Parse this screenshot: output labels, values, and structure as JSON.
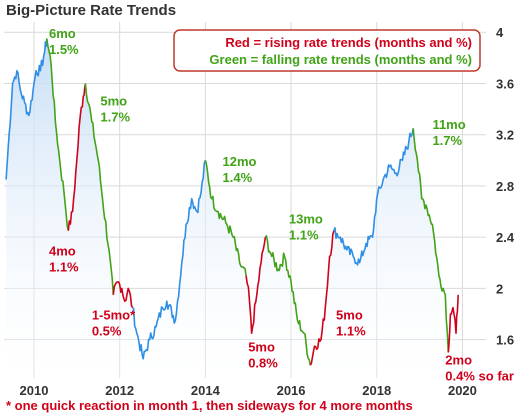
{
  "chart_data": {
    "type": "line",
    "title": "Big-Picture Rate Trends",
    "xlabel": "",
    "ylabel": "",
    "xlim": [
      2009.3,
      2020.55
    ],
    "ylim": [
      1.3,
      4.08
    ],
    "y_ticks": [
      1.6,
      2.0,
      2.4,
      2.8,
      3.2,
      3.6,
      4.0
    ],
    "y_tick_labels": [
      "1.6",
      "2",
      "2.4",
      "2.8",
      "3.2",
      "3.6",
      "4"
    ],
    "x_ticks": [
      2010,
      2012,
      2014,
      2016,
      2018,
      2020
    ],
    "x_tick_labels": [
      "2010",
      "2012",
      "2014",
      "2016",
      "2018",
      "2020"
    ],
    "grid": true,
    "legend_position": "top-right",
    "colors": {
      "neutral": "#2f8fe6",
      "rising": "#d0021b",
      "falling": "#41a317",
      "fill": "#cfe3f7",
      "grid": "#d9d9d9"
    },
    "legend": [
      {
        "text": "Red = rising rate trends (months and %)",
        "color": "#d0021b"
      },
      {
        "text": "Green = falling rate trends (months and %)",
        "color": "#41a317"
      }
    ],
    "series": [
      {
        "trend": "neutral",
        "points": [
          [
            2009.35,
            2.85
          ],
          [
            2009.42,
            3.2
          ],
          [
            2009.5,
            3.6
          ],
          [
            2009.6,
            3.7
          ],
          [
            2009.68,
            3.55
          ],
          [
            2009.78,
            3.45
          ],
          [
            2009.88,
            3.35
          ],
          [
            2009.98,
            3.55
          ],
          [
            2010.05,
            3.7
          ],
          [
            2010.15,
            3.7
          ],
          [
            2010.25,
            3.85
          ],
          [
            2010.3,
            3.95
          ]
        ]
      },
      {
        "trend": "falling",
        "points": [
          [
            2010.3,
            3.95
          ],
          [
            2010.4,
            3.75
          ],
          [
            2010.5,
            3.3
          ],
          [
            2010.6,
            3.0
          ],
          [
            2010.7,
            2.75
          ],
          [
            2010.8,
            2.45
          ]
        ]
      },
      {
        "trend": "rising",
        "points": [
          [
            2010.8,
            2.45
          ],
          [
            2010.9,
            2.6
          ],
          [
            2011.0,
            3.0
          ],
          [
            2011.08,
            3.35
          ],
          [
            2011.15,
            3.5
          ],
          [
            2011.2,
            3.6
          ]
        ]
      },
      {
        "trend": "falling",
        "points": [
          [
            2011.2,
            3.6
          ],
          [
            2011.35,
            3.3
          ],
          [
            2011.5,
            3.0
          ],
          [
            2011.6,
            2.7
          ],
          [
            2011.75,
            2.3
          ],
          [
            2011.85,
            1.95
          ]
        ]
      },
      {
        "trend": "rising",
        "points": [
          [
            2011.85,
            1.95
          ],
          [
            2011.95,
            2.05
          ],
          [
            2012.05,
            2.0
          ],
          [
            2012.12,
            1.9
          ],
          [
            2012.2,
            2.0
          ],
          [
            2012.3,
            1.85
          ]
        ]
      },
      {
        "trend": "neutral",
        "points": [
          [
            2012.3,
            1.85
          ],
          [
            2012.4,
            1.65
          ],
          [
            2012.55,
            1.45
          ],
          [
            2012.7,
            1.6
          ],
          [
            2012.85,
            1.7
          ],
          [
            2013.0,
            1.85
          ],
          [
            2013.1,
            1.9
          ],
          [
            2013.3,
            1.75
          ],
          [
            2013.45,
            2.2
          ],
          [
            2013.55,
            2.5
          ],
          [
            2013.68,
            2.7
          ],
          [
            2013.8,
            2.6
          ],
          [
            2013.9,
            2.75
          ],
          [
            2014.0,
            3.0
          ]
        ]
      },
      {
        "trend": "falling",
        "points": [
          [
            2014.0,
            3.0
          ],
          [
            2014.15,
            2.7
          ],
          [
            2014.3,
            2.6
          ],
          [
            2014.5,
            2.5
          ],
          [
            2014.65,
            2.4
          ],
          [
            2014.8,
            2.2
          ],
          [
            2014.95,
            2.1
          ]
        ]
      },
      {
        "trend": "rising",
        "points": [
          [
            2014.95,
            2.1
          ],
          [
            2015.03,
            1.9
          ],
          [
            2015.08,
            1.65
          ],
          [
            2015.2,
            1.95
          ],
          [
            2015.3,
            2.2
          ],
          [
            2015.4,
            2.4
          ]
        ]
      },
      {
        "trend": "falling",
        "points": [
          [
            2015.4,
            2.4
          ],
          [
            2015.55,
            2.25
          ],
          [
            2015.7,
            2.15
          ],
          [
            2015.85,
            2.25
          ],
          [
            2016.0,
            2.05
          ],
          [
            2016.15,
            1.75
          ],
          [
            2016.3,
            1.65
          ],
          [
            2016.45,
            1.4
          ]
        ]
      },
      {
        "trend": "rising",
        "points": [
          [
            2016.45,
            1.4
          ],
          [
            2016.55,
            1.55
          ],
          [
            2016.7,
            1.6
          ],
          [
            2016.8,
            1.85
          ],
          [
            2016.9,
            2.25
          ],
          [
            2017.0,
            2.45
          ]
        ]
      },
      {
        "trend": "neutral",
        "points": [
          [
            2017.0,
            2.45
          ],
          [
            2017.15,
            2.4
          ],
          [
            2017.3,
            2.3
          ],
          [
            2017.45,
            2.25
          ],
          [
            2017.6,
            2.2
          ],
          [
            2017.75,
            2.35
          ],
          [
            2017.9,
            2.4
          ],
          [
            2018.0,
            2.7
          ],
          [
            2018.15,
            2.85
          ],
          [
            2018.3,
            2.95
          ],
          [
            2018.45,
            2.9
          ],
          [
            2018.6,
            3.0
          ],
          [
            2018.75,
            3.15
          ],
          [
            2018.85,
            3.25
          ]
        ]
      },
      {
        "trend": "falling",
        "points": [
          [
            2018.85,
            3.25
          ],
          [
            2018.95,
            3.0
          ],
          [
            2019.05,
            2.7
          ],
          [
            2019.15,
            2.65
          ],
          [
            2019.3,
            2.5
          ],
          [
            2019.45,
            2.1
          ],
          [
            2019.6,
            1.95
          ],
          [
            2019.67,
            1.5
          ]
        ]
      },
      {
        "trend": "rising",
        "points": [
          [
            2019.67,
            1.5
          ],
          [
            2019.72,
            1.8
          ],
          [
            2019.78,
            1.85
          ],
          [
            2019.85,
            1.65
          ],
          [
            2019.9,
            1.95
          ]
        ]
      }
    ],
    "annotations": [
      {
        "lines": [
          "6mo",
          "1.5%"
        ],
        "x": 2010.35,
        "y": 4.05,
        "color": "#41a317"
      },
      {
        "lines": [
          "4mo",
          "1.1%"
        ],
        "x": 2010.35,
        "y": 2.35,
        "color": "#d0021b"
      },
      {
        "lines": [
          "5mo",
          "1.7%"
        ],
        "x": 2011.55,
        "y": 3.52,
        "color": "#41a317"
      },
      {
        "lines": [
          "1-5mo*",
          "0.5%"
        ],
        "x": 2011.35,
        "y": 1.85,
        "color": "#d0021b"
      },
      {
        "lines": [
          "12mo",
          "1.4%"
        ],
        "x": 2014.4,
        "y": 3.05,
        "color": "#41a317"
      },
      {
        "lines": [
          "5mo",
          "0.8%"
        ],
        "x": 2015.0,
        "y": 1.6,
        "color": "#d0021b"
      },
      {
        "lines": [
          "13mo",
          "1.1%"
        ],
        "x": 2015.95,
        "y": 2.6,
        "color": "#41a317"
      },
      {
        "lines": [
          "5mo",
          "1.1%"
        ],
        "x": 2017.05,
        "y": 1.85,
        "color": "#d0021b"
      },
      {
        "lines": [
          "11mo",
          "1.7%"
        ],
        "x": 2019.3,
        "y": 3.34,
        "color": "#41a317"
      },
      {
        "lines": [
          "2mo",
          "0.4% so far"
        ],
        "x": 2019.6,
        "y": 1.5,
        "color": "#d0021b"
      }
    ],
    "footnote": "* one quick reaction in month 1, then sideways for 4 more months"
  }
}
